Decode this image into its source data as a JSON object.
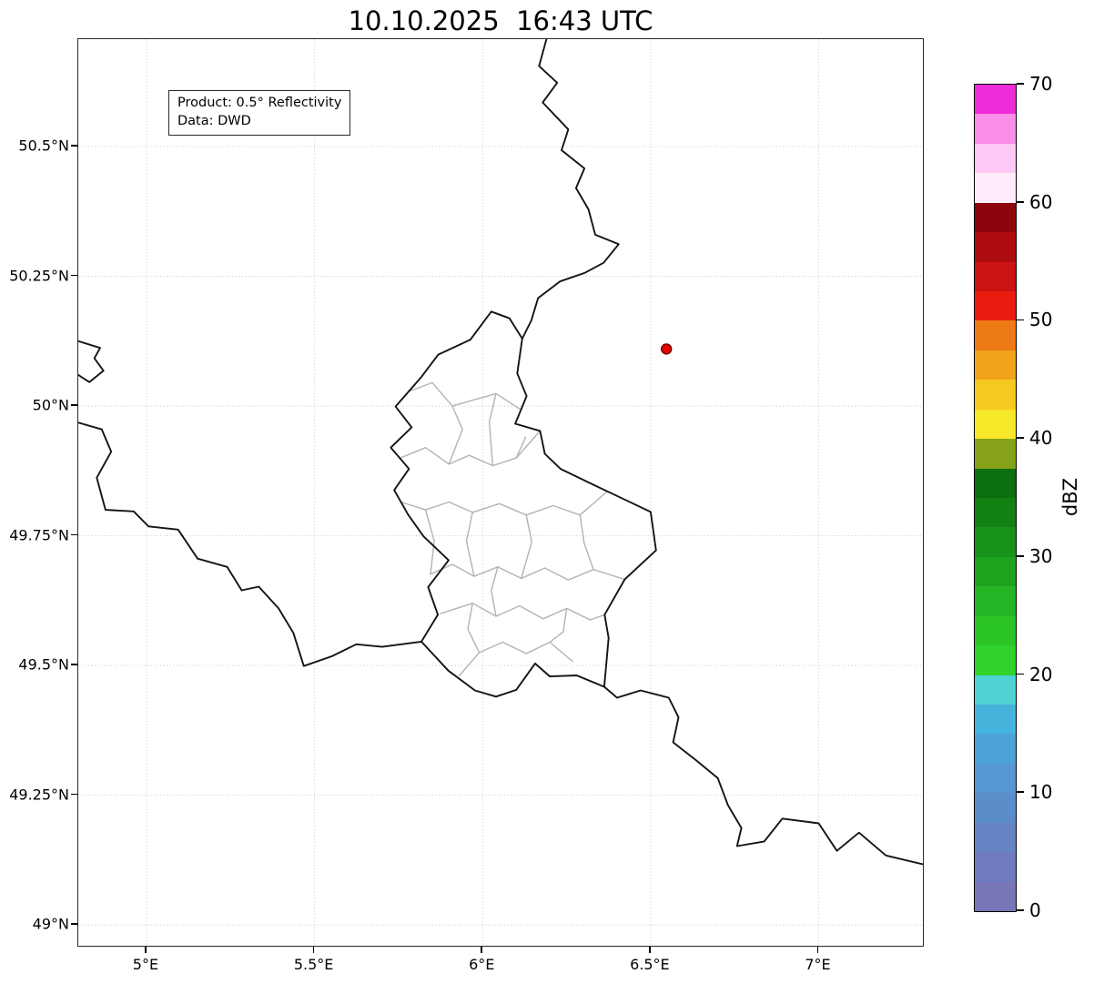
{
  "title": "10.10.2025  16:43 UTC",
  "info_box": {
    "line1": "Product: 0.5° Reflectivity",
    "line2": "Data: DWD"
  },
  "map": {
    "lon_range": [
      4.797,
      7.31
    ],
    "lat_range": [
      48.96,
      50.707
    ],
    "x_ticks": [
      {
        "value": 5.0,
        "label": "5°E"
      },
      {
        "value": 5.5,
        "label": "5.5°E"
      },
      {
        "value": 6.0,
        "label": "6°E"
      },
      {
        "value": 6.5,
        "label": "6.5°E"
      },
      {
        "value": 7.0,
        "label": "7°E"
      }
    ],
    "y_ticks": [
      {
        "value": 50.5,
        "label": "50.5°N"
      },
      {
        "value": 50.25,
        "label": "50.25°N"
      },
      {
        "value": 50.0,
        "label": "50°N"
      },
      {
        "value": 49.75,
        "label": "49.75°N"
      },
      {
        "value": 49.5,
        "label": "49.5°N"
      },
      {
        "value": 49.25,
        "label": "49.25°N"
      },
      {
        "value": 49.0,
        "label": "49°N"
      }
    ],
    "grid_color": "#c6c6c6",
    "country_border_color": "#141414",
    "canton_border_color": "#b3b3b3",
    "radar_marker": {
      "lon": 6.547,
      "lat": 50.11,
      "fill": "#e60000",
      "edge": "#730000"
    },
    "country_borders": [
      {
        "name": "luxembourg-outline",
        "points": [
          [
            6.026,
            50.182
          ],
          [
            6.08,
            50.169
          ],
          [
            6.118,
            50.13
          ],
          [
            6.103,
            50.063
          ],
          [
            6.131,
            50.019
          ],
          [
            6.097,
            49.966
          ],
          [
            6.171,
            49.952
          ],
          [
            6.185,
            49.908
          ],
          [
            6.232,
            49.879
          ],
          [
            6.318,
            49.852
          ],
          [
            6.422,
            49.82
          ],
          [
            6.5,
            49.796
          ],
          [
            6.516,
            49.722
          ],
          [
            6.423,
            49.666
          ],
          [
            6.363,
            49.598
          ],
          [
            6.375,
            49.553
          ],
          [
            6.362,
            49.459
          ],
          [
            6.28,
            49.481
          ],
          [
            6.2,
            49.479
          ],
          [
            6.156,
            49.504
          ],
          [
            6.1,
            49.453
          ],
          [
            6.04,
            49.44
          ],
          [
            5.977,
            49.452
          ],
          [
            5.898,
            49.49
          ],
          [
            5.818,
            49.546
          ],
          [
            5.867,
            49.598
          ],
          [
            5.838,
            49.651
          ],
          [
            5.899,
            49.703
          ],
          [
            5.824,
            49.749
          ],
          [
            5.778,
            49.791
          ],
          [
            5.737,
            49.838
          ],
          [
            5.781,
            49.879
          ],
          [
            5.727,
            49.92
          ],
          [
            5.789,
            49.959
          ],
          [
            5.741,
            49.999
          ],
          [
            5.818,
            50.056
          ],
          [
            5.868,
            50.099
          ],
          [
            5.964,
            50.128
          ],
          [
            6.026,
            50.182
          ]
        ]
      },
      {
        "name": "belgium-germany-border",
        "points": [
          [
            6.19,
            50.707
          ],
          [
            6.168,
            50.655
          ],
          [
            6.222,
            50.623
          ],
          [
            6.179,
            50.585
          ],
          [
            6.255,
            50.533
          ],
          [
            6.235,
            50.493
          ],
          [
            6.303,
            50.458
          ],
          [
            6.278,
            50.42
          ],
          [
            6.315,
            50.379
          ],
          [
            6.335,
            50.33
          ],
          [
            6.405,
            50.312
          ],
          [
            6.36,
            50.276
          ],
          [
            6.305,
            50.257
          ],
          [
            6.23,
            50.24
          ],
          [
            6.165,
            50.208
          ],
          [
            6.145,
            50.165
          ],
          [
            6.118,
            50.13
          ]
        ]
      },
      {
        "name": "france-germany-border",
        "points": [
          [
            6.362,
            49.459
          ],
          [
            6.4,
            49.438
          ],
          [
            6.47,
            49.452
          ],
          [
            6.554,
            49.438
          ],
          [
            6.583,
            49.4
          ],
          [
            6.567,
            49.352
          ],
          [
            6.634,
            49.318
          ],
          [
            6.7,
            49.283
          ],
          [
            6.73,
            49.231
          ],
          [
            6.77,
            49.187
          ],
          [
            6.757,
            49.152
          ],
          [
            6.838,
            49.161
          ],
          [
            6.892,
            49.205
          ],
          [
            7.0,
            49.196
          ],
          [
            7.054,
            49.143
          ],
          [
            7.12,
            49.178
          ],
          [
            7.2,
            49.134
          ],
          [
            7.31,
            49.117
          ]
        ]
      },
      {
        "name": "belgium-france-border",
        "points": [
          [
            4.797,
            49.968
          ],
          [
            4.867,
            49.955
          ],
          [
            4.895,
            49.912
          ],
          [
            4.852,
            49.862
          ],
          [
            4.878,
            49.8
          ],
          [
            4.962,
            49.797
          ],
          [
            5.006,
            49.768
          ],
          [
            5.094,
            49.762
          ],
          [
            5.152,
            49.706
          ],
          [
            5.24,
            49.69
          ],
          [
            5.283,
            49.645
          ],
          [
            5.334,
            49.652
          ],
          [
            5.393,
            49.61
          ],
          [
            5.437,
            49.563
          ],
          [
            5.468,
            49.499
          ],
          [
            5.552,
            49.518
          ],
          [
            5.624,
            49.541
          ],
          [
            5.701,
            49.536
          ],
          [
            5.818,
            49.546
          ]
        ]
      },
      {
        "name": "givet-salient-border",
        "points": [
          [
            4.797,
            50.125
          ],
          [
            4.862,
            50.112
          ],
          [
            4.845,
            50.092
          ],
          [
            4.872,
            50.068
          ],
          [
            4.83,
            50.046
          ],
          [
            4.797,
            50.06
          ]
        ]
      }
    ],
    "canton_borders": [
      {
        "points": [
          [
            5.78,
            50.028
          ],
          [
            5.85,
            50.045
          ],
          [
            5.91,
            50.0
          ],
          [
            5.975,
            50.012
          ],
          [
            6.04,
            50.024
          ],
          [
            6.114,
            49.993
          ]
        ]
      },
      {
        "points": [
          [
            5.755,
            49.9
          ],
          [
            5.83,
            49.92
          ],
          [
            5.9,
            49.888
          ],
          [
            5.96,
            49.905
          ],
          [
            6.03,
            49.885
          ],
          [
            6.1,
            49.9
          ],
          [
            6.171,
            49.952
          ]
        ]
      },
      {
        "points": [
          [
            5.757,
            49.815
          ],
          [
            5.83,
            49.8
          ],
          [
            5.9,
            49.815
          ],
          [
            5.97,
            49.795
          ],
          [
            6.05,
            49.812
          ],
          [
            6.13,
            49.79
          ],
          [
            6.21,
            49.808
          ],
          [
            6.29,
            49.79
          ],
          [
            6.37,
            49.835
          ]
        ]
      },
      {
        "points": [
          [
            5.845,
            49.676
          ],
          [
            5.91,
            49.695
          ],
          [
            5.975,
            49.672
          ],
          [
            6.045,
            49.69
          ],
          [
            6.115,
            49.668
          ],
          [
            6.185,
            49.688
          ],
          [
            6.255,
            49.665
          ],
          [
            6.33,
            49.685
          ],
          [
            6.423,
            49.666
          ]
        ]
      },
      {
        "points": [
          [
            5.875,
            49.6
          ],
          [
            5.97,
            49.62
          ],
          [
            6.04,
            49.595
          ],
          [
            6.11,
            49.615
          ],
          [
            6.18,
            49.59
          ],
          [
            6.25,
            49.61
          ],
          [
            6.32,
            49.588
          ],
          [
            6.363,
            49.598
          ]
        ]
      },
      {
        "points": [
          [
            5.93,
            49.48
          ],
          [
            5.99,
            49.525
          ],
          [
            6.06,
            49.545
          ],
          [
            6.13,
            49.523
          ],
          [
            6.2,
            49.545
          ],
          [
            6.268,
            49.508
          ]
        ]
      },
      {
        "points": [
          [
            5.91,
            50.0
          ],
          [
            5.94,
            49.955
          ],
          [
            5.9,
            49.888
          ]
        ]
      },
      {
        "points": [
          [
            6.04,
            50.024
          ],
          [
            6.02,
            49.97
          ],
          [
            6.03,
            49.885
          ]
        ]
      },
      {
        "points": [
          [
            5.83,
            49.8
          ],
          [
            5.856,
            49.74
          ],
          [
            5.845,
            49.676
          ]
        ]
      },
      {
        "points": [
          [
            5.97,
            49.795
          ],
          [
            5.952,
            49.74
          ],
          [
            5.975,
            49.672
          ]
        ]
      },
      {
        "points": [
          [
            6.13,
            49.79
          ],
          [
            6.146,
            49.738
          ],
          [
            6.115,
            49.668
          ]
        ]
      },
      {
        "points": [
          [
            6.29,
            49.79
          ],
          [
            6.302,
            49.736
          ],
          [
            6.33,
            49.685
          ]
        ]
      },
      {
        "points": [
          [
            6.045,
            49.69
          ],
          [
            6.026,
            49.644
          ],
          [
            6.04,
            49.595
          ]
        ]
      },
      {
        "points": [
          [
            6.25,
            49.61
          ],
          [
            6.24,
            49.565
          ],
          [
            6.2,
            49.545
          ]
        ]
      },
      {
        "points": [
          [
            5.97,
            49.62
          ],
          [
            5.956,
            49.57
          ],
          [
            5.99,
            49.525
          ]
        ]
      },
      {
        "points": [
          [
            6.1,
            49.9
          ],
          [
            6.128,
            49.94
          ]
        ]
      }
    ]
  },
  "colorbar": {
    "label": "dBZ",
    "min": 0,
    "max": 70,
    "step": 2.5,
    "tick_values": [
      0,
      10,
      20,
      30,
      40,
      50,
      60,
      70
    ],
    "tick_labels": [
      "0",
      "10",
      "20",
      "30",
      "40",
      "50",
      "60",
      "70"
    ],
    "colors_bottom_to_top": [
      "#7976b8",
      "#6f7cbf",
      "#6684c5",
      "#5c8dcb",
      "#5497d1",
      "#4ba3d8",
      "#45b4dd",
      "#4fd2d4",
      "#2fd32b",
      "#2bc528",
      "#25b423",
      "#1ea31e",
      "#189219",
      "#128113",
      "#0c700e",
      "#86a21b",
      "#f8e82a",
      "#f5c922",
      "#f1a31c",
      "#ed7a15",
      "#ea1c10",
      "#cd1312",
      "#ae0c10",
      "#8e040c",
      "#feecfa",
      "#fdc8f3",
      "#fa8ee9",
      "#ef2ad8"
    ]
  }
}
